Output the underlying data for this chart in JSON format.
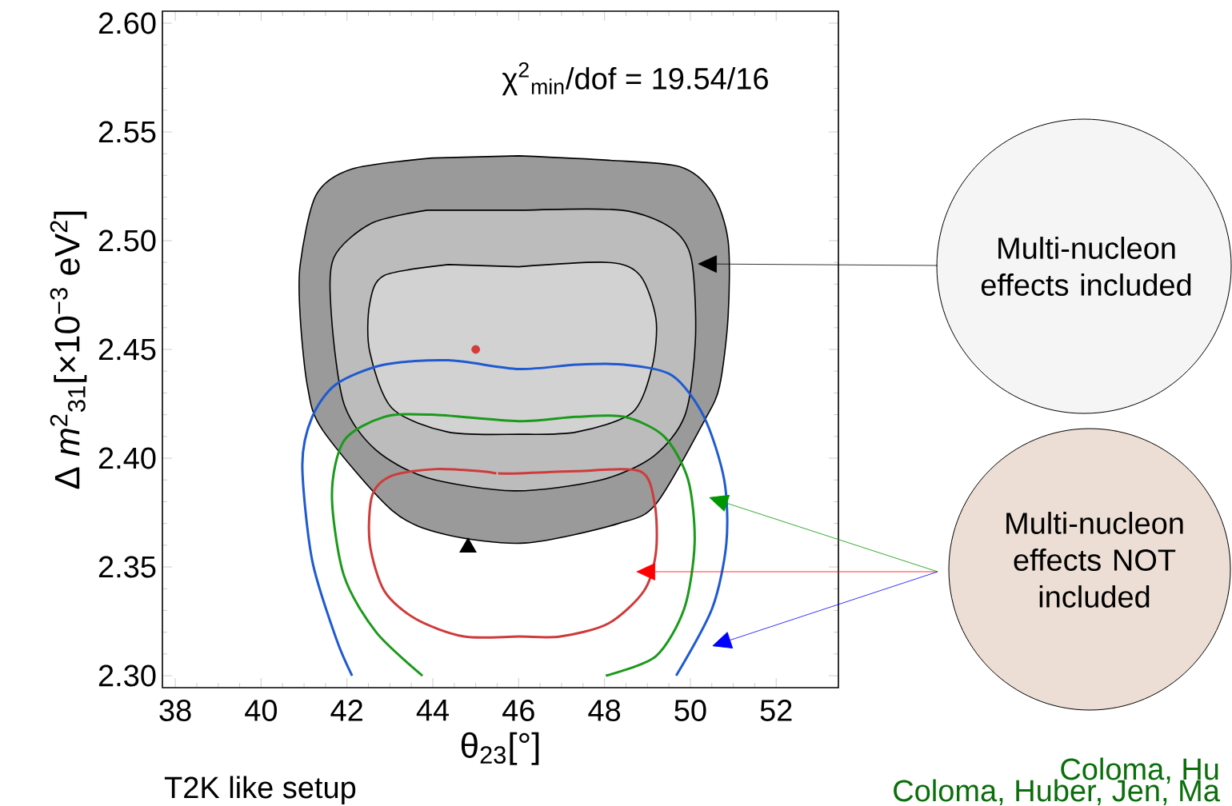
{
  "chart_data": {
    "type": "line",
    "xlabel": "θ$_{23}$[°]",
    "ylabel": "Δ *m*$^{2}$$_{31}$[×10$^{−3}$ eV$^{2}$]",
    "xlim": [
      37.7,
      53.45
    ],
    "ylim": [
      2.2945,
      2.6055
    ],
    "xticks": [
      38,
      40,
      42,
      44,
      46,
      48,
      50,
      52
    ],
    "yticks": [
      {
        "value": 2.3,
        "label": "2.30"
      },
      {
        "value": 2.35,
        "label": "2.35"
      },
      {
        "value": 2.4,
        "label": "2.40"
      },
      {
        "value": 2.45,
        "label": "2.45"
      },
      {
        "value": 2.5,
        "label": "2.50"
      },
      {
        "value": 2.55,
        "label": "2.55"
      },
      {
        "value": 2.6,
        "label": "2.60"
      }
    ],
    "annotations": [
      "χ$^{2}$$_{min}$/dof = 19.54/16",
      "Multi-nucleon effects included",
      "Multi-nucleon effects NOT included",
      "T2K like setup",
      "Coloma, Hu",
      "Coloma, Huber, Jen, Ma"
    ],
    "series": [
      {
        "type": "area",
        "color": "#9a9a9a",
        "x": [
          46.0,
          48.09,
          49.76,
          50.51,
          50.88,
          50.88,
          50.68,
          50.32,
          49.2,
          48.33,
          46.15,
          44.28,
          43.05,
          41.43,
          41.08,
          40.91,
          40.91,
          41.28,
          42.12,
          43.98
        ],
        "values": [
          2.539,
          2.537,
          2.534,
          2.522,
          2.5,
          2.465,
          2.433,
          2.417,
          2.379,
          2.37,
          2.361,
          2.365,
          2.376,
          2.413,
          2.433,
          2.465,
          2.489,
          2.521,
          2.533,
          2.538
        ]
      },
      {
        "type": "area",
        "color": "#bcbcbc",
        "x": [
          46.15,
          48.4,
          49.54,
          50.02,
          50.12,
          49.88,
          49.15,
          47.92,
          45.9,
          43.87,
          42.66,
          41.93,
          41.64,
          41.69,
          42.57,
          43.87
        ],
        "values": [
          2.514,
          2.514,
          2.506,
          2.492,
          2.455,
          2.42,
          2.401,
          2.39,
          2.385,
          2.391,
          2.404,
          2.425,
          2.465,
          2.492,
          2.508,
          2.514
        ]
      },
      {
        "type": "area",
        "color": "#d2d2d2",
        "x": [
          46.0,
          48.09,
          48.83,
          49.2,
          49.11,
          48.65,
          47.34,
          46.0,
          44.36,
          43.05,
          42.53,
          42.53,
          42.87,
          44.36
        ],
        "values": [
          2.488,
          2.49,
          2.484,
          2.464,
          2.442,
          2.421,
          2.412,
          2.411,
          2.412,
          2.423,
          2.449,
          2.471,
          2.484,
          2.489
        ]
      },
      {
        "color": "#1f5ad0",
        "x": [
          42.12,
          41.75,
          41.19,
          40.96,
          41.19,
          41.75,
          42.87,
          44.36,
          46.0,
          47.34,
          48.46,
          49.58,
          50.32,
          50.79,
          50.84,
          50.51,
          49.67
        ],
        "values": [
          2.3,
          2.317,
          2.353,
          2.397,
          2.419,
          2.434,
          2.443,
          2.445,
          2.441,
          2.443,
          2.443,
          2.438,
          2.419,
          2.39,
          2.361,
          2.331,
          2.3
        ]
      },
      {
        "color": "#1a9a1a",
        "x": [
          43.76,
          42.68,
          41.93,
          41.65,
          41.93,
          42.87,
          43.98,
          46.0,
          47.34,
          48.46,
          49.39,
          49.95,
          50.1,
          49.86,
          49.2,
          48.03
        ],
        "values": [
          2.3,
          2.32,
          2.346,
          2.383,
          2.408,
          2.419,
          2.42,
          2.417,
          2.419,
          2.419,
          2.41,
          2.39,
          2.361,
          2.331,
          2.309,
          2.3
        ]
      },
      {
        "color": "#d03a3a",
        "x": [
          45.52,
          46.0,
          47.34,
          48.83,
          49.17,
          49.2,
          48.92,
          48.09,
          46.97,
          46.0,
          44.73,
          43.61,
          42.87,
          42.53,
          42.59,
          43.05,
          44.08,
          45.1,
          45.48
        ],
        "values": [
          2.393,
          2.393,
          2.394,
          2.394,
          2.379,
          2.357,
          2.339,
          2.324,
          2.318,
          2.318,
          2.318,
          2.326,
          2.339,
          2.361,
          2.383,
          2.392,
          2.395,
          2.394,
          2.393
        ]
      },
      {
        "type": "scatter",
        "color": "#d43c3c",
        "x": [
          45.0
        ],
        "values": [
          2.45
        ]
      }
    ]
  }
}
